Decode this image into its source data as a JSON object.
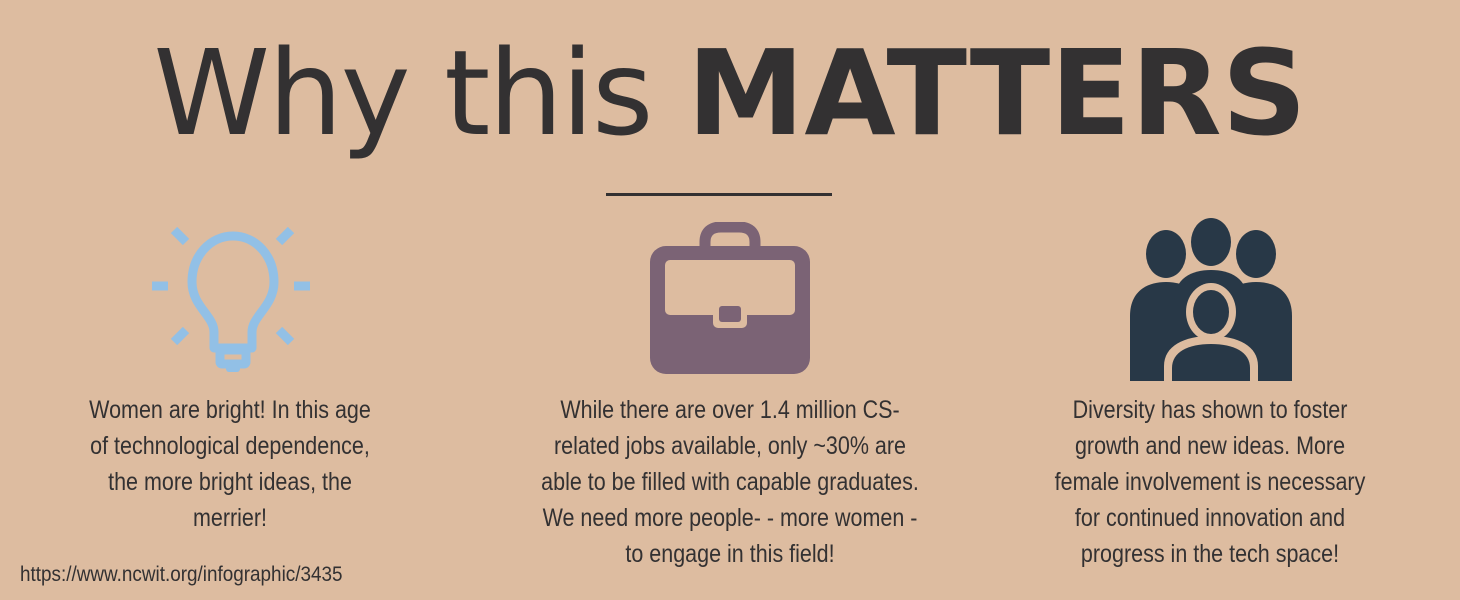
{
  "title": {
    "light": "Why this ",
    "bold": "MATTERS"
  },
  "colors": {
    "background": "#ddbca0",
    "text": "#333132",
    "bulb": "#92c0e6",
    "briefcase": "#7b6375",
    "people": "#283847"
  },
  "icons": {
    "left": "lightbulb-icon",
    "middle": "briefcase-icon",
    "right": "people-group-icon"
  },
  "columns": [
    {
      "lines": [
        "Women are bright! In this age",
        "of technological dependence,",
        "the more bright ideas, the",
        "merrier!"
      ]
    },
    {
      "lines": [
        "While there are over 1.4 million CS-",
        "related jobs available, only ~30% are",
        "able to be filled with capable graduates.",
        "We need more people- - more women -",
        "to engage in this field!"
      ]
    },
    {
      "lines": [
        "Diversity has shown to foster",
        "growth and new ideas. More",
        "female involvement is necessary",
        "for continued innovation and",
        "progress in the tech space!"
      ]
    }
  ],
  "source": "https://www.ncwit.org/infographic/3435"
}
